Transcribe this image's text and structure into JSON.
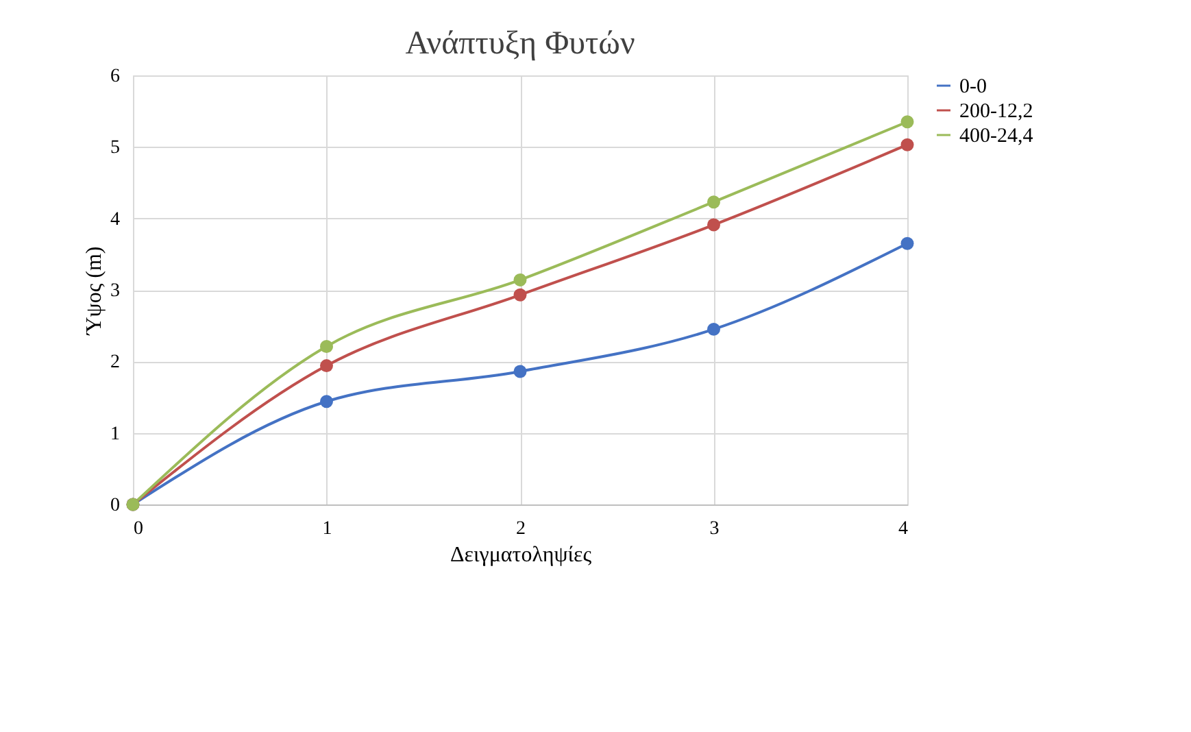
{
  "chart_data": {
    "type": "line",
    "title": "Ανάπτυξη Φυτών",
    "xlabel": "Δειγματοληψίες",
    "ylabel": "Ύψος (m)",
    "x": [
      0,
      1,
      2,
      3,
      4
    ],
    "xlim": [
      0,
      4
    ],
    "xticks": [
      0,
      1,
      2,
      3,
      4
    ],
    "ylim": [
      0,
      6
    ],
    "yticks": [
      0,
      1,
      2,
      3,
      4,
      5,
      6
    ],
    "series": [
      {
        "name": "0-0",
        "color": "#4472c4",
        "values": [
          0,
          1.44,
          1.86,
          2.45,
          3.65
        ]
      },
      {
        "name": "200-12,2",
        "color": "#c0504d",
        "values": [
          0,
          1.94,
          2.93,
          3.91,
          5.03
        ]
      },
      {
        "name": "400-24,4",
        "color": "#9bbb59",
        "values": [
          0,
          2.21,
          3.14,
          4.23,
          5.35
        ]
      }
    ],
    "grid": true,
    "legend": "right",
    "marker": "circle",
    "line_style": "solid"
  }
}
